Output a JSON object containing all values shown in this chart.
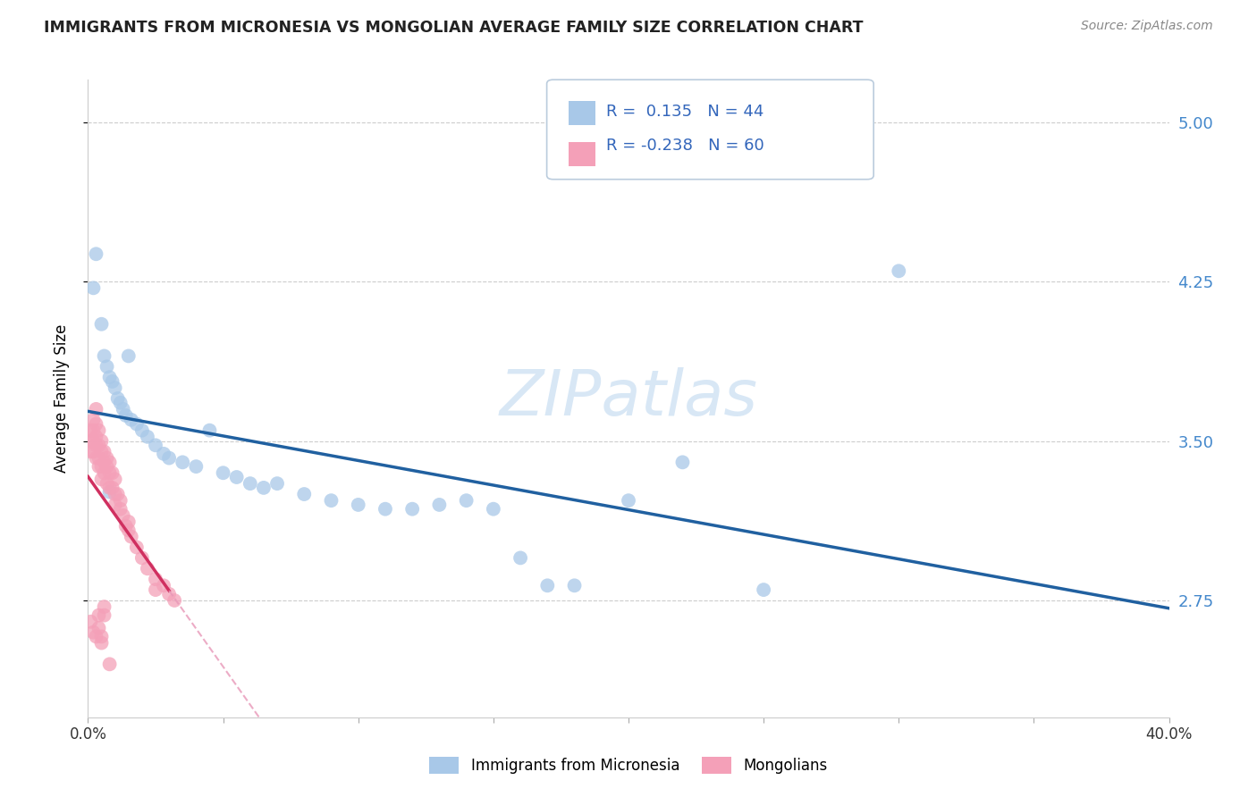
{
  "title": "IMMIGRANTS FROM MICRONESIA VS MONGOLIAN AVERAGE FAMILY SIZE CORRELATION CHART",
  "source": "Source: ZipAtlas.com",
  "ylabel": "Average Family Size",
  "xlim": [
    0.0,
    0.4
  ],
  "ylim": [
    2.2,
    5.2
  ],
  "yticks": [
    2.75,
    3.5,
    4.25,
    5.0
  ],
  "xticks": [
    0.0,
    0.05,
    0.1,
    0.15,
    0.2,
    0.25,
    0.3,
    0.35,
    0.4
  ],
  "blue_color": "#a8c8e8",
  "pink_color": "#f4a0b8",
  "blue_line_color": "#2060a0",
  "pink_line_color": "#d03060",
  "pink_dash_color": "#e898b8",
  "blue_R": 0.135,
  "blue_N": 44,
  "pink_R": -0.238,
  "pink_N": 60,
  "legend_label_blue": "Immigrants from Micronesia",
  "legend_label_pink": "Mongolians",
  "watermark": "ZIPatlas",
  "blue_x": [
    0.002,
    0.003,
    0.005,
    0.006,
    0.007,
    0.008,
    0.009,
    0.01,
    0.011,
    0.012,
    0.013,
    0.014,
    0.015,
    0.016,
    0.018,
    0.02,
    0.022,
    0.025,
    0.028,
    0.03,
    0.035,
    0.04,
    0.045,
    0.05,
    0.055,
    0.06,
    0.065,
    0.07,
    0.08,
    0.09,
    0.1,
    0.11,
    0.12,
    0.13,
    0.14,
    0.15,
    0.16,
    0.17,
    0.18,
    0.2,
    0.22,
    0.25,
    0.3,
    0.008
  ],
  "blue_y": [
    4.22,
    4.38,
    4.05,
    3.9,
    3.85,
    3.8,
    3.78,
    3.75,
    3.7,
    3.68,
    3.65,
    3.62,
    3.9,
    3.6,
    3.58,
    3.55,
    3.52,
    3.48,
    3.44,
    3.42,
    3.4,
    3.38,
    3.55,
    3.35,
    3.33,
    3.3,
    3.28,
    3.3,
    3.25,
    3.22,
    3.2,
    3.18,
    3.18,
    3.2,
    3.22,
    3.18,
    2.95,
    2.82,
    2.82,
    3.22,
    3.4,
    2.8,
    4.3,
    3.26
  ],
  "pink_x": [
    0.001,
    0.001,
    0.001,
    0.002,
    0.002,
    0.002,
    0.002,
    0.003,
    0.003,
    0.003,
    0.003,
    0.003,
    0.004,
    0.004,
    0.004,
    0.004,
    0.005,
    0.005,
    0.005,
    0.005,
    0.006,
    0.006,
    0.006,
    0.007,
    0.007,
    0.007,
    0.008,
    0.008,
    0.008,
    0.009,
    0.009,
    0.01,
    0.01,
    0.01,
    0.011,
    0.012,
    0.012,
    0.013,
    0.014,
    0.015,
    0.015,
    0.016,
    0.018,
    0.02,
    0.022,
    0.025,
    0.025,
    0.028,
    0.03,
    0.032,
    0.001,
    0.002,
    0.003,
    0.004,
    0.005,
    0.006,
    0.004,
    0.005,
    0.006,
    0.008
  ],
  "pink_y": [
    3.55,
    3.5,
    3.45,
    3.6,
    3.55,
    3.5,
    3.45,
    3.65,
    3.58,
    3.52,
    3.48,
    3.42,
    3.55,
    3.48,
    3.42,
    3.38,
    3.5,
    3.45,
    3.38,
    3.32,
    3.45,
    3.4,
    3.35,
    3.42,
    3.38,
    3.3,
    3.4,
    3.35,
    3.28,
    3.35,
    3.28,
    3.32,
    3.25,
    3.2,
    3.25,
    3.18,
    3.22,
    3.15,
    3.1,
    3.08,
    3.12,
    3.05,
    3.0,
    2.95,
    2.9,
    2.85,
    2.8,
    2.82,
    2.78,
    2.75,
    2.65,
    2.6,
    2.58,
    2.68,
    2.55,
    2.72,
    2.62,
    2.58,
    2.68,
    2.45
  ]
}
